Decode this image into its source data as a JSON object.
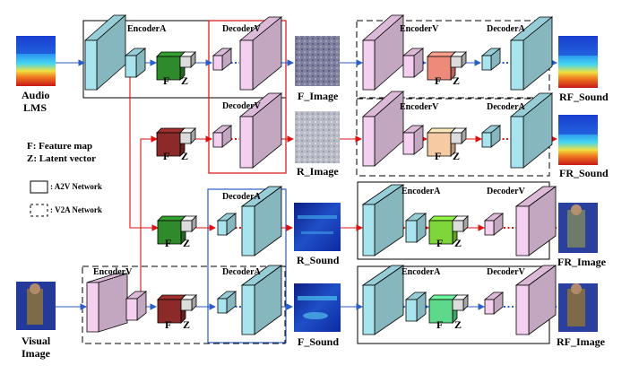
{
  "labels": {
    "encoder_a": "EncoderA",
    "encoder_v": "EncoderV",
    "decoder_a": "DecoderA",
    "decoder_v": "DecoderV",
    "f": "F",
    "z": "Z",
    "audio_lms_line1": "Audio",
    "audio_lms_line2": "LMS",
    "visual_image_line1": "Visual",
    "visual_image_line2": "Image",
    "f_image": "F_Image",
    "r_image": "R_Image",
    "r_sound": "R_Sound",
    "f_sound": "F_Sound",
    "rf_sound": "RF_Sound",
    "fr_sound": "FR_Sound",
    "fr_image": "FR_Image",
    "rf_image": "RF_Image"
  },
  "legend": {
    "feature_map": "F:  Feature map",
    "latent_vector": "Z:  Latent vector",
    "a2v_network": ": A2V Network",
    "v2a_network": ": V2A Network"
  },
  "colors": {
    "encoder_a_block": "#a8e4ee",
    "encoder_v_block": "#f4cfef",
    "red_arrow": "#e01010",
    "blue_arrow": "#2a5ec8",
    "red_box": "#d92020",
    "blue_box": "#3a66c8",
    "f_green": "#2e8a2a",
    "f_brown": "#8b2a28",
    "f_salmon": "#ee8a7a",
    "f_peach": "#f6caa2",
    "f_lime": "#7ed63a",
    "f_mint": "#5ed88a",
    "z_gray": "#dcdcdc"
  }
}
